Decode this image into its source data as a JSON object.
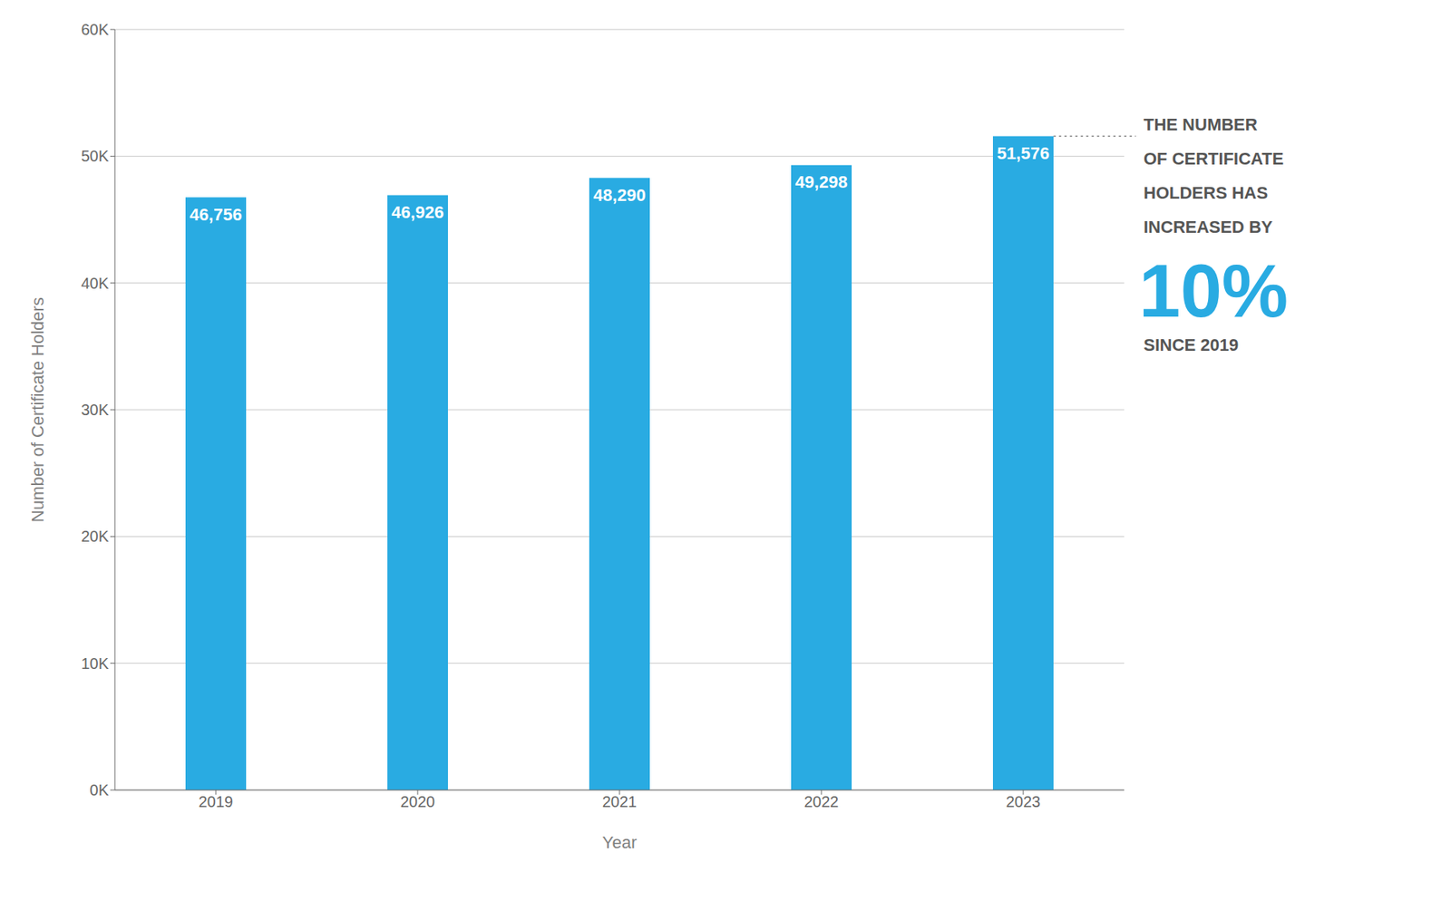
{
  "chart_data": {
    "type": "bar",
    "xlabel": "Year",
    "ylabel": "Number of Certificate Holders",
    "categories": [
      "2019",
      "2020",
      "2021",
      "2022",
      "2023"
    ],
    "values": [
      46756,
      46926,
      48290,
      49298,
      51576
    ],
    "value_labels": [
      "46,756",
      "46,926",
      "48,290",
      "49,298",
      "51,576"
    ],
    "data_labels": true,
    "color": "#29ABE2",
    "ylim": [
      0,
      60000
    ],
    "yticks": [
      {
        "value": 0,
        "label": "0K"
      },
      {
        "value": 10000,
        "label": "10K"
      },
      {
        "value": 20000,
        "label": "20K"
      },
      {
        "value": 30000,
        "label": "30K"
      },
      {
        "value": 40000,
        "label": "40K"
      },
      {
        "value": 50000,
        "label": "50K"
      },
      {
        "value": 60000,
        "label": "60K"
      }
    ],
    "grid": true,
    "annotations": [
      "THE NUMBER",
      "OF CERTIFICATE",
      "HOLDERS HAS",
      "INCREASED BY",
      "10%",
      "SINCE 2019"
    ]
  }
}
